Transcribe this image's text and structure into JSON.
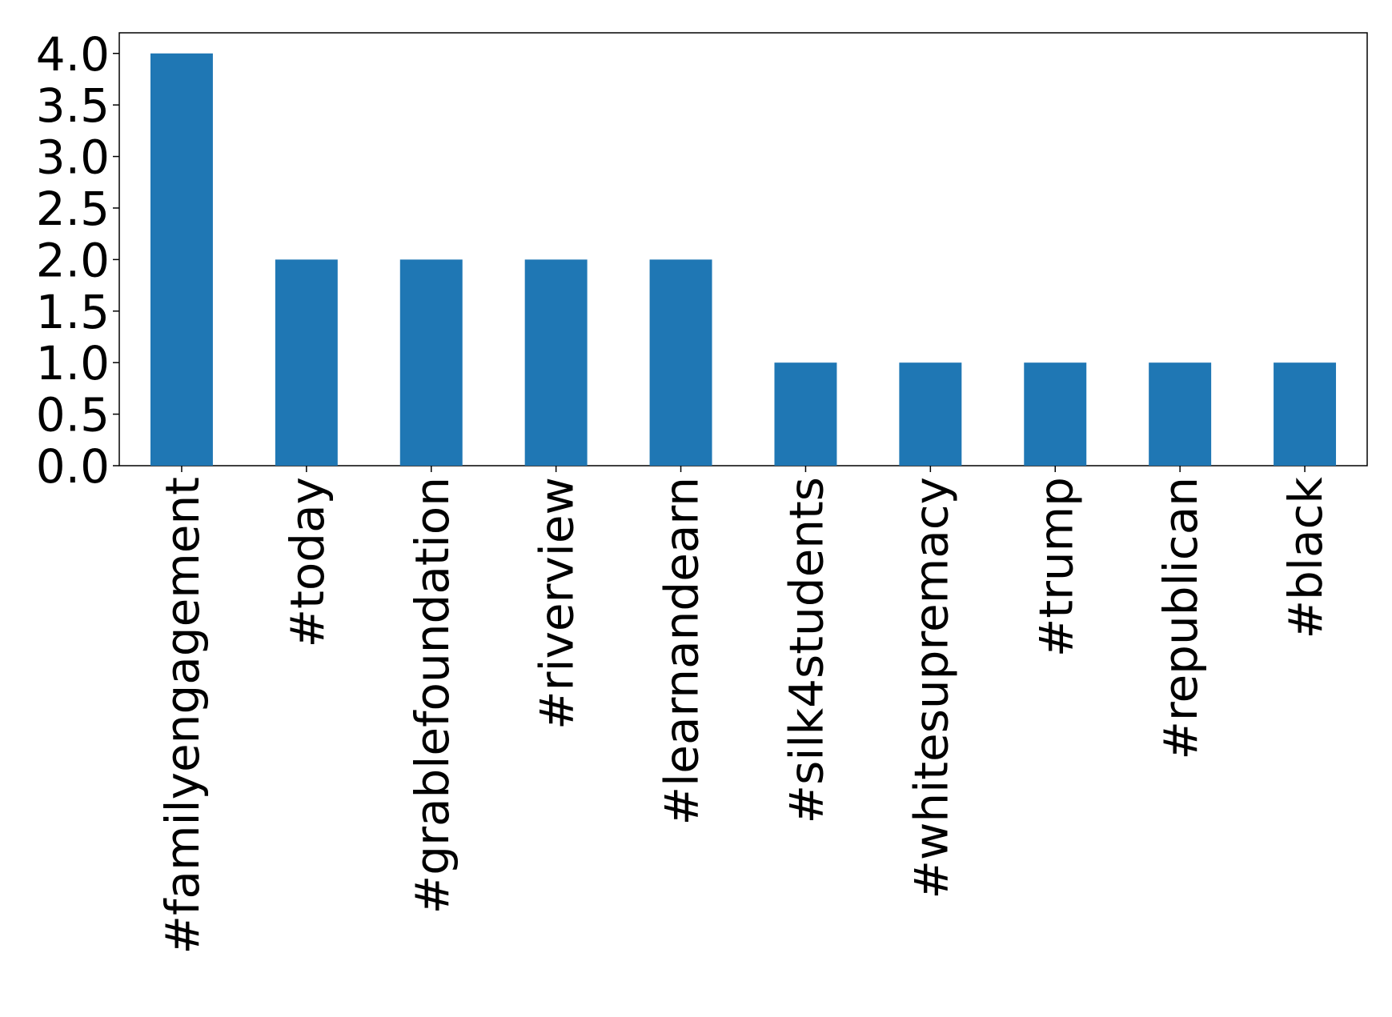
{
  "chart_data": {
    "type": "bar",
    "categories": [
      "#familyengagement",
      "#today",
      "#grablefoundation",
      "#riverview",
      "#learnandearn",
      "#silk4students",
      "#whitesupremacy",
      "#trump",
      "#republican",
      "#black"
    ],
    "values": [
      4,
      2,
      2,
      2,
      2,
      1,
      1,
      1,
      1,
      1
    ],
    "color": "#1f77b4",
    "ylim": [
      0,
      4.2
    ],
    "yticks": [
      {
        "value": 0,
        "label": "0.0"
      },
      {
        "value": 0.5,
        "label": "0.5"
      },
      {
        "value": 1,
        "label": "1.0"
      },
      {
        "value": 1.5,
        "label": "1.5"
      },
      {
        "value": 2,
        "label": "2.0"
      },
      {
        "value": 2.5,
        "label": "2.5"
      },
      {
        "value": 3,
        "label": "3.0"
      },
      {
        "value": 3.5,
        "label": "3.5"
      },
      {
        "value": 4,
        "label": "4.0"
      }
    ],
    "grid": false
  }
}
